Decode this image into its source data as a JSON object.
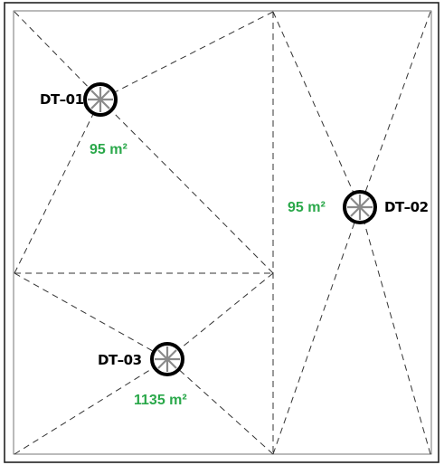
{
  "colors": {
    "area_label": "#2aa84a",
    "detector_ring": "#000000",
    "detector_spokes": "#8a8a8a"
  },
  "detectors": [
    {
      "id": "dt01",
      "tag": "DT–01",
      "area": "95 m²"
    },
    {
      "id": "dt02",
      "tag": "DT–02",
      "area": "95 m²"
    },
    {
      "id": "dt03",
      "tag": "DT–03",
      "area": "1135 m²"
    }
  ]
}
